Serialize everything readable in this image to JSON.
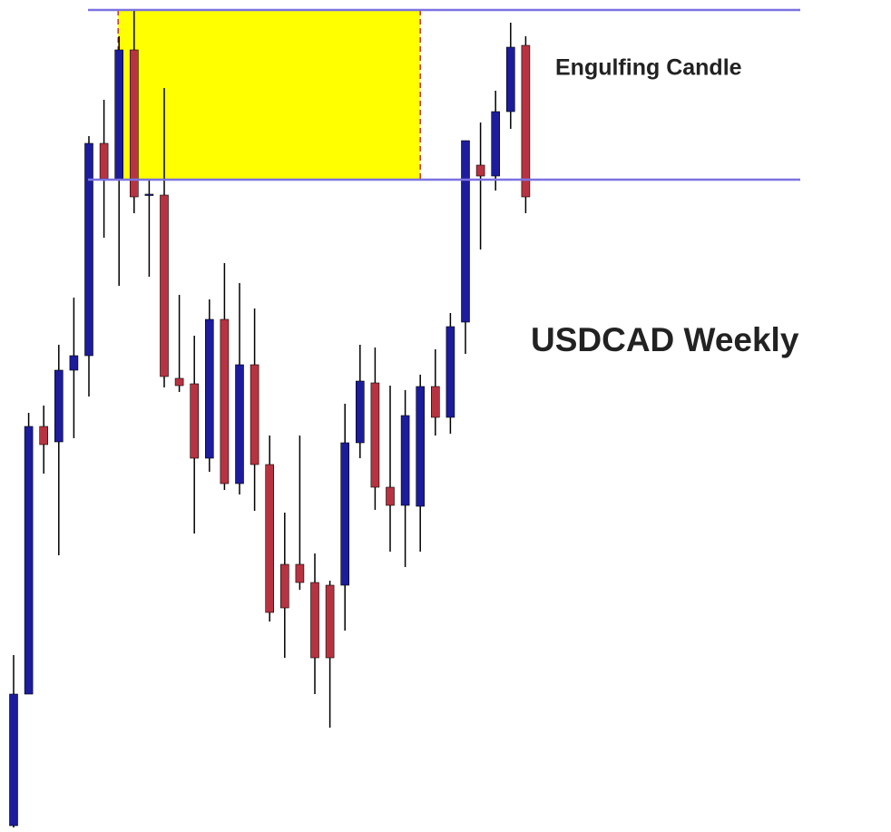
{
  "chart_data": {
    "type": "candlestick",
    "annotations": [
      "Engulfing Candle",
      "USDCAD Weekly"
    ],
    "categories": [
      null,
      null,
      null,
      null,
      null,
      null,
      null,
      null,
      null,
      null,
      null,
      null,
      null,
      null,
      null,
      null,
      null,
      null,
      null,
      null,
      null,
      null,
      null,
      null,
      null,
      null,
      null,
      null,
      null,
      null,
      null,
      null,
      null,
      null,
      null
    ],
    "open": [
      7,
      152,
      447,
      430,
      509,
      525,
      759,
      720,
      862,
      702,
      702,
      500,
      494,
      412,
      565,
      384,
      515,
      405,
      295,
      295,
      275,
      272,
      272,
      429,
      495,
      380,
      360,
      359,
      491,
      457,
      562,
      735,
      723,
      794,
      867
    ],
    "high": [
      195,
      462,
      470,
      537,
      589,
      767,
      807,
      877,
      905,
      718,
      820,
      592,
      547,
      587,
      627,
      605,
      577,
      437,
      352,
      437,
      307,
      277,
      472,
      537,
      534,
      492,
      487,
      504,
      532,
      572,
      760,
      782,
      817,
      892,
      877
    ],
    "low": [
      5,
      152,
      395,
      305,
      434,
      480,
      655,
      602,
      682,
      612,
      490,
      485,
      329,
      397,
      377,
      372,
      354,
      232,
      192,
      267,
      152,
      115,
      222,
      412,
      355,
      309,
      292,
      309,
      437,
      439,
      527,
      642,
      707,
      775,
      682
    ],
    "close": [
      152,
      447,
      427,
      509,
      525,
      759,
      720,
      862,
      700,
      703,
      502,
      492,
      412,
      565,
      384,
      515,
      405,
      242,
      247,
      275,
      192,
      192,
      429,
      497,
      380,
      360,
      459,
      491,
      457,
      557,
      762,
      723,
      794,
      865,
      700
    ],
    "up_color": "#1c1c9c",
    "down_color": "#b83341",
    "ylim": [
      0,
      917
    ],
    "levels": [
      906,
      719
    ],
    "level_color": "#7b72e2",
    "zone": {
      "low": 719,
      "high": 906,
      "start": 7,
      "end": 27,
      "color": "#ffff00",
      "border_color": "#b83341"
    }
  }
}
